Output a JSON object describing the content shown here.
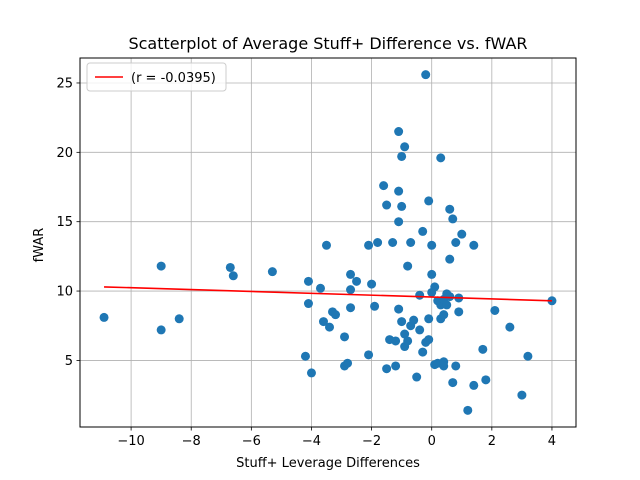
{
  "chart_data": {
    "type": "scatter",
    "title": "Scatterplot of Average Stuff+ Difference vs. fWAR",
    "xlabel": "Stuff+ Leverage Differences",
    "ylabel": "fWAR",
    "xlim": [
      -11.7,
      4.8
    ],
    "ylim": [
      0.2,
      26.8
    ],
    "xticks": [
      -10,
      -8,
      -6,
      -4,
      -2,
      0,
      2,
      4
    ],
    "xtick_labels": [
      "−10",
      "−8",
      "−6",
      "−4",
      "−2",
      "0",
      "2",
      "4"
    ],
    "yticks": [
      5,
      10,
      15,
      20,
      25
    ],
    "ytick_labels": [
      "5",
      "10",
      "15",
      "20",
      "25"
    ],
    "grid": true,
    "legend_position": "top-left",
    "colors": {
      "points": "#1f77b4",
      "regression_line": "#ff0000",
      "grid": "#b0b0b0"
    },
    "series": [
      {
        "kind": "points",
        "x": [
          -10.9,
          -9.0,
          -9.0,
          -8.4,
          -6.7,
          -6.6,
          -5.3,
          -4.2,
          -4.1,
          -4.1,
          -4.0,
          -3.7,
          -3.6,
          -3.5,
          -3.4,
          -3.3,
          -3.2,
          -2.9,
          -2.9,
          -2.8,
          -2.7,
          -2.7,
          -2.7,
          -2.5,
          -2.1,
          -2.1,
          -2.0,
          -1.9,
          -1.8,
          -1.6,
          -1.5,
          -1.5,
          -1.4,
          -1.3,
          -1.2,
          -1.2,
          -1.1,
          -1.1,
          -1.1,
          -1.1,
          -1.0,
          -1.0,
          -1.0,
          -0.9,
          -0.9,
          -0.9,
          -0.8,
          -0.8,
          -0.7,
          -0.7,
          -0.6,
          -0.5,
          -0.4,
          -0.4,
          -0.3,
          -0.3,
          -0.2,
          -0.2,
          -0.1,
          -0.1,
          -0.1,
          0.0,
          0.0,
          0.0,
          0.1,
          0.1,
          0.2,
          0.2,
          0.3,
          0.3,
          0.3,
          0.4,
          0.4,
          0.4,
          0.4,
          0.4,
          0.5,
          0.5,
          0.6,
          0.6,
          0.6,
          0.7,
          0.7,
          0.8,
          0.8,
          0.9,
          0.9,
          1.0,
          1.2,
          1.4,
          1.4,
          1.7,
          1.8,
          2.1,
          2.6,
          3.0,
          3.2,
          4.0
        ],
        "y": [
          8.1,
          11.8,
          7.2,
          8.0,
          11.7,
          11.1,
          11.4,
          5.3,
          10.7,
          9.1,
          4.1,
          10.2,
          7.8,
          13.3,
          7.4,
          8.5,
          8.3,
          6.7,
          4.6,
          4.8,
          8.8,
          11.2,
          10.1,
          10.7,
          5.4,
          13.3,
          10.5,
          8.9,
          13.5,
          17.6,
          16.2,
          4.4,
          6.5,
          13.5,
          4.6,
          6.4,
          21.5,
          17.2,
          15.0,
          8.7,
          16.1,
          19.7,
          7.8,
          6.0,
          6.9,
          20.4,
          6.4,
          11.8,
          13.5,
          7.5,
          7.9,
          3.8,
          9.7,
          7.2,
          5.6,
          14.3,
          6.3,
          25.6,
          16.5,
          8.0,
          6.5,
          11.2,
          13.3,
          9.9,
          10.3,
          4.7,
          9.3,
          4.8,
          19.6,
          9.0,
          8.0,
          4.6,
          9.1,
          9.4,
          8.3,
          4.9,
          9.8,
          9.0,
          15.9,
          12.3,
          9.6,
          15.2,
          3.4,
          13.5,
          4.6,
          8.5,
          9.5,
          14.1,
          1.4,
          3.2,
          13.3,
          5.8,
          3.6,
          8.6,
          7.4,
          2.5,
          5.3,
          9.3
        ]
      },
      {
        "kind": "regression_line",
        "name": "(r = -0.0395)",
        "x": [
          -10.9,
          4.0
        ],
        "y": [
          10.3,
          9.3
        ]
      }
    ]
  }
}
